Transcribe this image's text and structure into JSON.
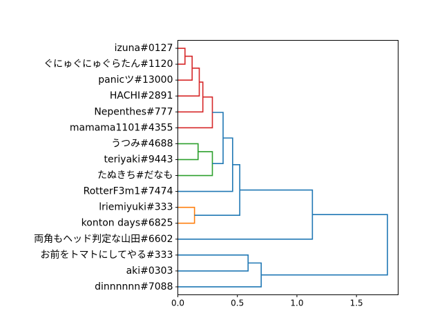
{
  "chart_data": {
    "type": "dendrogram",
    "orientation": "left",
    "title": "",
    "xlabel": "",
    "ylabel": "",
    "xlim": [
      0,
      1.85
    ],
    "xticks": [
      0.0,
      0.5,
      1.0,
      1.5
    ],
    "xtick_labels": [
      "0.0",
      "0.5",
      "1.0",
      "1.5"
    ],
    "leaves": [
      "izuna#0127",
      "ぐにゅぐにゅぐらたん#1120",
      "panicツ#13000",
      "HACHI#2891",
      "Nepenthes#777",
      "mamama1101#4355",
      "うつみ#4688",
      "teriyaki#9443",
      "たぬきち#だなも",
      "RotterF3m1#7474",
      "lriemiyuki#333",
      "konton days#6825",
      "両角もヘッド判定な山田#6602",
      "お前をトマトにしてやる#333",
      "aki#0303",
      "dinnnnnn#7088"
    ],
    "colors": {
      "red": "#d62728",
      "green": "#2ca02c",
      "orange": "#ff7f0e",
      "blue": "#1f77b4"
    },
    "merges": [
      {
        "id": "c0",
        "left": 0,
        "right": 1,
        "height": 0.06,
        "color": "red"
      },
      {
        "id": "c1",
        "left": "c0",
        "right": 2,
        "height": 0.12,
        "color": "red"
      },
      {
        "id": "c2",
        "left": "c1",
        "right": 3,
        "height": 0.18,
        "color": "red"
      },
      {
        "id": "c3",
        "left": "c2",
        "right": 4,
        "height": 0.21,
        "color": "red"
      },
      {
        "id": "c4",
        "left": "c3",
        "right": 5,
        "height": 0.29,
        "color": "red"
      },
      {
        "id": "c5",
        "left": 6,
        "right": 7,
        "height": 0.17,
        "color": "green"
      },
      {
        "id": "c6",
        "left": "c5",
        "right": 8,
        "height": 0.29,
        "color": "green"
      },
      {
        "id": "c7",
        "left": "c4",
        "right": "c6",
        "height": 0.38,
        "color": "blue"
      },
      {
        "id": "c8",
        "left": "c7",
        "right": 9,
        "height": 0.46,
        "color": "blue"
      },
      {
        "id": "c9",
        "left": 10,
        "right": 11,
        "height": 0.14,
        "color": "orange"
      },
      {
        "id": "c10",
        "left": "c8",
        "right": "c9",
        "height": 0.52,
        "color": "blue"
      },
      {
        "id": "c11",
        "left": "c10",
        "right": 12,
        "height": 1.13,
        "color": "blue"
      },
      {
        "id": "c12",
        "left": 13,
        "right": 14,
        "height": 0.59,
        "color": "blue"
      },
      {
        "id": "c13",
        "left": "c12",
        "right": 15,
        "height": 0.7,
        "color": "blue"
      },
      {
        "id": "c14",
        "left": "c11",
        "right": "c13",
        "height": 1.76,
        "color": "blue"
      }
    ]
  }
}
